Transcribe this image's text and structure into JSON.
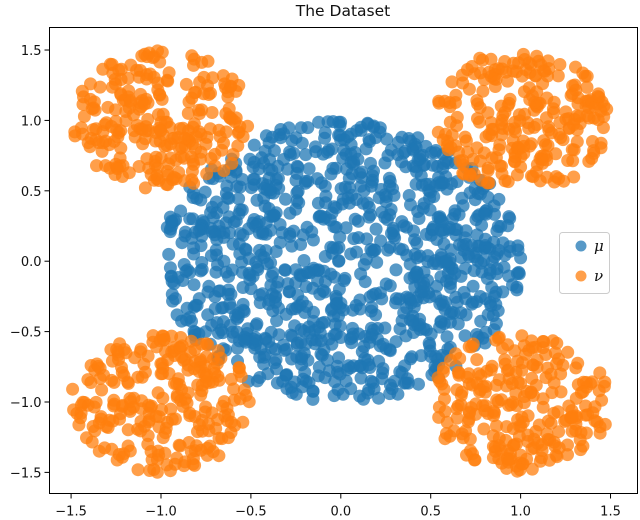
{
  "chart_data": {
    "type": "scatter",
    "title": "The Dataset",
    "xlabel": "",
    "ylabel": "",
    "xlim": [
      -1.62,
      1.65
    ],
    "ylim": [
      -1.65,
      1.66
    ],
    "xticks": [
      -1.5,
      -1.0,
      -0.5,
      0.0,
      0.5,
      1.0,
      1.5
    ],
    "xtick_labels": [
      "−1.5",
      "−1.0",
      "−0.5",
      "0.0",
      "0.5",
      "1.0",
      "1.5"
    ],
    "yticks": [
      1.5,
      1.0,
      0.5,
      0.0,
      -0.5,
      -1.0,
      -1.5
    ],
    "ytick_labels": [
      "1.5",
      "1.0",
      "0.5",
      "0.0",
      "−0.5",
      "−1.0",
      "−1.5"
    ],
    "grid": false,
    "legend_position": "center right",
    "marker_alpha": 0.75,
    "series": [
      {
        "name": "μ",
        "color": "#1f77b4",
        "distribution": "uniform disk",
        "clusters": [
          {
            "center": [
              0.0,
              0.0
            ],
            "radius": 1.0,
            "count": 1000
          }
        ]
      },
      {
        "name": "ν",
        "color": "#ff7f0e",
        "distribution": "uniform disk",
        "clusters": [
          {
            "center": [
              -1.0,
              1.0
            ],
            "radius": 0.5,
            "count": 250
          },
          {
            "center": [
              1.0,
              1.0
            ],
            "radius": 0.5,
            "count": 250
          },
          {
            "center": [
              -1.0,
              -1.0
            ],
            "radius": 0.5,
            "count": 250
          },
          {
            "center": [
              1.0,
              -1.0
            ],
            "radius": 0.5,
            "count": 250
          }
        ]
      }
    ]
  },
  "legend": {
    "items": [
      {
        "label": "μ",
        "color": "#1f77b4"
      },
      {
        "label": "ν",
        "color": "#ff7f0e"
      }
    ]
  }
}
